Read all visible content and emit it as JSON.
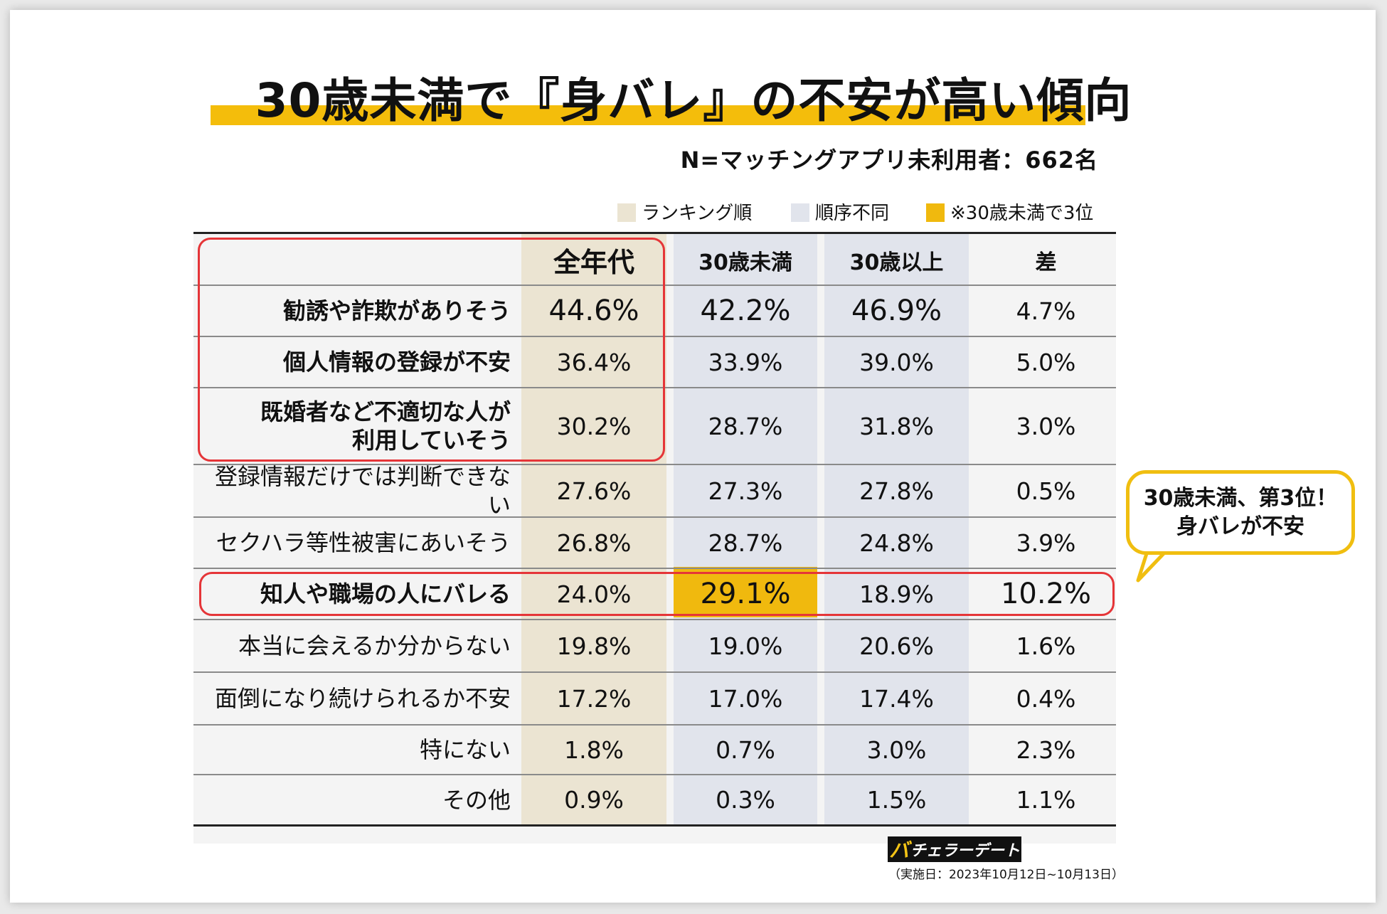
{
  "title": "30歳未満で『身バレ』の不安が高い傾向",
  "subtitle": "N=マッチングアプリ未利用者：662名",
  "legend": [
    {
      "label": "ランキング順",
      "color": "#ebe4d2"
    },
    {
      "label": "順序不同",
      "color": "#e1e4ec"
    },
    {
      "label": "※30歳未満で3位",
      "color": "#f0b90e"
    }
  ],
  "columns": [
    "全年代",
    "30歳未満",
    "30歳以上",
    "差"
  ],
  "callout": {
    "line1": "30歳未満、第3位！",
    "line2": "身バレが不安"
  },
  "brand": "チェラーデート",
  "brand_mark": "バ",
  "date_note": "（実施日：2023年10月12日~10月13日）",
  "colors": {
    "accent": "#f0b90e",
    "rank_col": "#ebe4d2",
    "col_bg": "#e1e4ec",
    "red": "#e53538"
  },
  "chart_data": {
    "type": "table",
    "title": "30歳未満で『身バレ』の不安が高い傾向",
    "columns": [
      "全年代",
      "30歳未満",
      "30歳以上",
      "差"
    ],
    "rows": [
      {
        "label": "勧誘や詐欺がありそう",
        "values": [
          "44.6%",
          "42.2%",
          "46.9%",
          "4.7%"
        ]
      },
      {
        "label": "個人情報の登録が不安",
        "values": [
          "36.4%",
          "33.9%",
          "39.0%",
          "5.0%"
        ]
      },
      {
        "label": "既婚者など不適切な人が 利用していそう",
        "label_lines": [
          "既婚者など不適切な人が",
          "利用していそう"
        ],
        "values": [
          "30.2%",
          "28.7%",
          "31.8%",
          "3.0%"
        ]
      },
      {
        "label": "登録情報だけでは判断できない",
        "values": [
          "27.6%",
          "27.3%",
          "27.8%",
          "0.5%"
        ]
      },
      {
        "label": "セクハラ等性被害にあいそう",
        "values": [
          "26.8%",
          "28.7%",
          "24.8%",
          "3.9%"
        ]
      },
      {
        "label": "知人や職場の人にバレる",
        "values": [
          "24.0%",
          "29.1%",
          "18.9%",
          "10.2%"
        ]
      },
      {
        "label": "本当に会えるか分からない",
        "values": [
          "19.8%",
          "19.0%",
          "20.6%",
          "1.6%"
        ]
      },
      {
        "label": "面倒になり続けられるか不安",
        "values": [
          "17.2%",
          "17.0%",
          "17.4%",
          "0.4%"
        ]
      },
      {
        "label": "特にない",
        "values": [
          "1.8%",
          "0.7%",
          "3.0%",
          "2.3%"
        ]
      },
      {
        "label": "その他",
        "values": [
          "0.9%",
          "0.3%",
          "1.5%",
          "1.1%"
        ]
      }
    ]
  }
}
